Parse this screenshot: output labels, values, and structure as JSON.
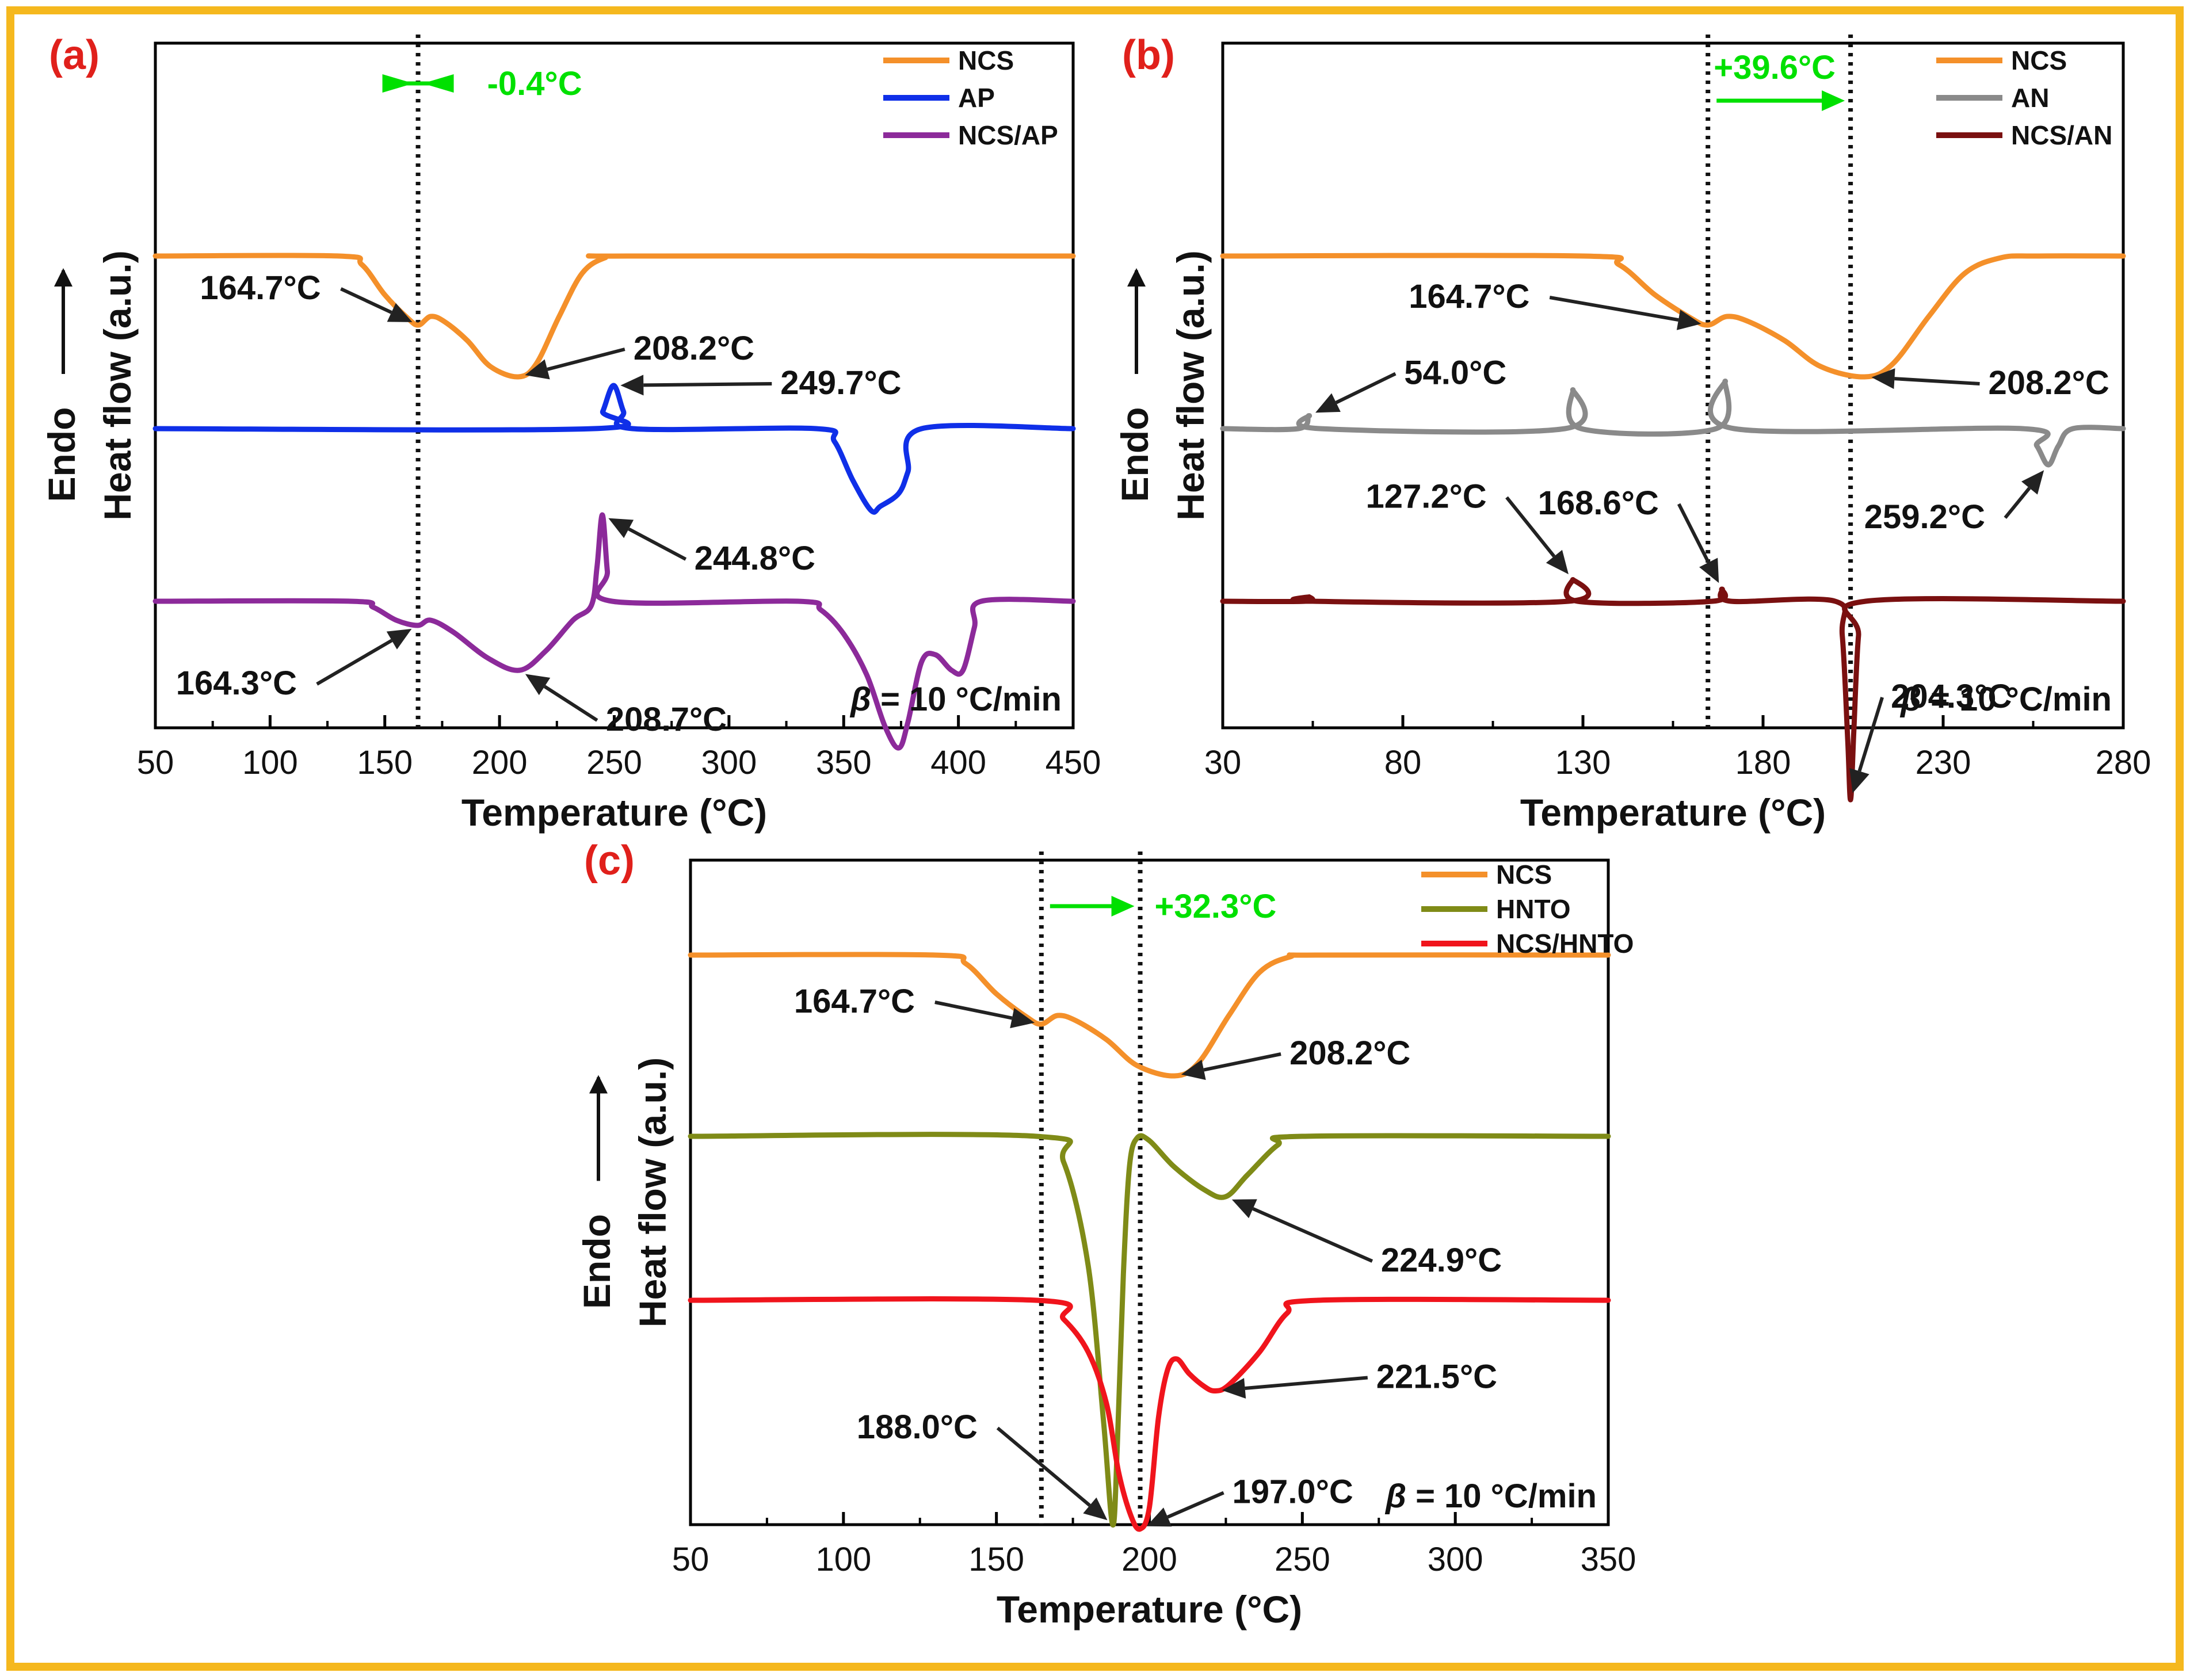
{
  "figure": {
    "border_color": "#f5b81e",
    "annotation_color": "#222222",
    "panel_label_color": "#e0201b",
    "shift_arrow_color": "#00e000",
    "axis_color": "#000000"
  },
  "chart_data": [
    {
      "panel_id": "a",
      "type": "line",
      "panel_label": "(a)",
      "xlabel": "Temperature (°C)",
      "ylabel_line1": "Endo",
      "ylabel_line2": "Heat flow (a.u.)",
      "xlim": [
        50,
        450
      ],
      "xticks": [
        50,
        100,
        150,
        200,
        250,
        300,
        350,
        400,
        450
      ],
      "yaxis_ticks": "none (arbitrary units)",
      "legend_position": "top-right",
      "rate_label": {
        "symbol": "β",
        "text": "= 10 °C/min"
      },
      "vlines": [
        164.5
      ],
      "shift": {
        "text": "-0.4°C",
        "from": 165,
        "to": 164.3,
        "direction": "converging"
      },
      "series": [
        {
          "name": "NCS",
          "color": "#f4902a",
          "offset": 4.0,
          "points": [
            [
              50,
              0
            ],
            [
              130,
              0
            ],
            [
              140,
              -0.1
            ],
            [
              150,
              -0.45
            ],
            [
              160,
              -0.72
            ],
            [
              164.7,
              -0.8
            ],
            [
              170,
              -0.7
            ],
            [
              176,
              -0.76
            ],
            [
              186,
              -0.98
            ],
            [
              196,
              -1.28
            ],
            [
              208.2,
              -1.4
            ],
            [
              216,
              -1.25
            ],
            [
              226,
              -0.7
            ],
            [
              236,
              -0.2
            ],
            [
              246,
              -0.02
            ],
            [
              256,
              0
            ],
            [
              450,
              0
            ]
          ]
        },
        {
          "name": "AP",
          "color": "#0f2fe8",
          "offset": 2.0,
          "points": [
            [
              50,
              0
            ],
            [
              241,
              0
            ],
            [
              245,
              0.2
            ],
            [
              249.7,
              0.5
            ],
            [
              254,
              0.2
            ],
            [
              258,
              0
            ],
            [
              338,
              0
            ],
            [
              346,
              -0.15
            ],
            [
              354,
              -0.6
            ],
            [
              362,
              -0.95
            ],
            [
              366,
              -0.9
            ],
            [
              374,
              -0.75
            ],
            [
              378,
              -0.5
            ],
            [
              384,
              0
            ],
            [
              450,
              0
            ]
          ]
        },
        {
          "name": "NCS/AP",
          "color": "#8c2a9a",
          "offset": 0.0,
          "points": [
            [
              50,
              0
            ],
            [
              135,
              0
            ],
            [
              145,
              -0.07
            ],
            [
              155,
              -0.22
            ],
            [
              164.3,
              -0.28
            ],
            [
              170,
              -0.22
            ],
            [
              180,
              -0.36
            ],
            [
              195,
              -0.66
            ],
            [
              208.7,
              -0.8
            ],
            [
              220,
              -0.58
            ],
            [
              232,
              -0.22
            ],
            [
              240,
              -0.05
            ],
            [
              242.5,
              0.4
            ],
            [
              244.8,
              1.0
            ],
            [
              247,
              0.35
            ],
            [
              249,
              0
            ],
            [
              330,
              0
            ],
            [
              340,
              -0.1
            ],
            [
              350,
              -0.38
            ],
            [
              360,
              -0.85
            ],
            [
              368,
              -1.45
            ],
            [
              374,
              -1.7
            ],
            [
              378,
              -1.4
            ],
            [
              384,
              -0.7
            ],
            [
              390,
              -0.62
            ],
            [
              397,
              -0.8
            ],
            [
              402,
              -0.8
            ],
            [
              407,
              -0.3
            ],
            [
              410,
              0
            ],
            [
              450,
              0
            ]
          ]
        }
      ],
      "annotations": [
        {
          "text": "164.7°C",
          "at": [
            164.7,
            -0.8
          ],
          "series": "NCS",
          "label_side": "upper-left"
        },
        {
          "text": "208.2°C",
          "at": [
            208.2,
            -1.4
          ],
          "series": "NCS",
          "label_side": "right"
        },
        {
          "text": "249.7°C",
          "at": [
            249.7,
            0.5
          ],
          "series": "AP",
          "label_side": "right"
        },
        {
          "text": "244.8°C",
          "at": [
            244.8,
            1.0
          ],
          "series": "NCS/AP",
          "label_side": "lower-right"
        },
        {
          "text": "164.3°C",
          "at": [
            164.3,
            -0.28
          ],
          "series": "NCS/AP",
          "label_side": "lower-left"
        },
        {
          "text": "208.7°C",
          "at": [
            208.7,
            -0.8
          ],
          "series": "NCS/AP",
          "label_side": "lower-right"
        }
      ]
    },
    {
      "panel_id": "b",
      "type": "line",
      "panel_label": "(b)",
      "xlabel": "Temperature (°C)",
      "ylabel_line1": "Endo",
      "ylabel_line2": "Heat flow (a.u.)",
      "xlim": [
        30,
        280
      ],
      "xticks": [
        30,
        80,
        130,
        180,
        230,
        280
      ],
      "yaxis_ticks": "none (arbitrary units)",
      "legend_position": "top-right",
      "rate_label": {
        "symbol": "β",
        "text": "= 10 °C/min"
      },
      "vlines": [
        164.7,
        204.3
      ],
      "shift": {
        "text": "+39.6°C",
        "from": 164.7,
        "to": 204.3,
        "direction": "right"
      },
      "series": [
        {
          "name": "NCS",
          "color": "#f4902a",
          "offset": 4.0,
          "points": [
            [
              30,
              0
            ],
            [
              130,
              0
            ],
            [
              140,
              -0.1
            ],
            [
              150,
              -0.45
            ],
            [
              160,
              -0.72
            ],
            [
              164.7,
              -0.8
            ],
            [
              170,
              -0.7
            ],
            [
              176,
              -0.76
            ],
            [
              186,
              -0.98
            ],
            [
              196,
              -1.28
            ],
            [
              208.2,
              -1.4
            ],
            [
              216,
              -1.25
            ],
            [
              226,
              -0.7
            ],
            [
              236,
              -0.2
            ],
            [
              246,
              -0.02
            ],
            [
              256,
              0
            ],
            [
              280,
              0
            ]
          ]
        },
        {
          "name": "AN",
          "color": "#8a8a8a",
          "offset": 2.0,
          "points": [
            [
              30,
              0
            ],
            [
              51,
              0
            ],
            [
              54,
              0.15
            ],
            [
              57,
              0
            ],
            [
              125,
              0
            ],
            [
              127.2,
              0.45
            ],
            [
              129.5,
              0
            ],
            [
              167,
              0
            ],
            [
              169.5,
              0.55
            ],
            [
              172,
              0
            ],
            [
              252,
              0
            ],
            [
              256,
              -0.2
            ],
            [
              259.2,
              -0.42
            ],
            [
              262,
              -0.2
            ],
            [
              266,
              0
            ],
            [
              280,
              0
            ]
          ]
        },
        {
          "name": "NCS/AN",
          "color": "#7a1010",
          "offset": 0.0,
          "points": [
            [
              30,
              0
            ],
            [
              53,
              0
            ],
            [
              54,
              0.05
            ],
            [
              55,
              0
            ],
            [
              126,
              0
            ],
            [
              127.2,
              0.25
            ],
            [
              128.5,
              0
            ],
            [
              166,
              0
            ],
            [
              168.6,
              0.14
            ],
            [
              171,
              0
            ],
            [
              200,
              0
            ],
            [
              202,
              -0.4
            ],
            [
              203.5,
              -1.6
            ],
            [
              204.3,
              -2.3
            ],
            [
              205.2,
              -1.5
            ],
            [
              206.5,
              -0.4
            ],
            [
              208.5,
              0
            ],
            [
              280,
              0
            ]
          ]
        }
      ],
      "annotations": [
        {
          "text": "164.7°C",
          "at": [
            164.7,
            -0.8
          ],
          "series": "NCS",
          "label_side": "upper-left"
        },
        {
          "text": "208.2°C",
          "at": [
            208.2,
            -1.4
          ],
          "series": "NCS",
          "label_side": "right"
        },
        {
          "text": "54.0°C",
          "at": [
            54.0,
            0.15
          ],
          "series": "AN",
          "label_side": "upper-right"
        },
        {
          "text": "259.2°C",
          "at": [
            259.2,
            -0.42
          ],
          "series": "AN",
          "label_side": "lower-left"
        },
        {
          "text": "127.2°C",
          "at": [
            127.2,
            0.25
          ],
          "series": "NCS/AN",
          "label_side": "upper-left"
        },
        {
          "text": "168.6°C",
          "at": [
            168.6,
            0.14
          ],
          "series": "NCS/AN",
          "label_side": "upper-left"
        },
        {
          "text": "204.3°C",
          "at": [
            204.3,
            -2.3
          ],
          "series": "NCS/AN",
          "label_side": "upper-right"
        }
      ]
    },
    {
      "panel_id": "c",
      "type": "line",
      "panel_label": "(c)",
      "xlabel": "Temperature (°C)",
      "ylabel_line1": "Endo",
      "ylabel_line2": "Heat flow (a.u.)",
      "xlim": [
        50,
        350
      ],
      "xticks": [
        50,
        100,
        150,
        200,
        250,
        300,
        350
      ],
      "yaxis_ticks": "none (arbitrary units)",
      "legend_position": "top-right",
      "rate_label": {
        "symbol": "β",
        "text": "= 10 °C/min"
      },
      "vlines": [
        164.7,
        197.0
      ],
      "shift": {
        "text": "+32.3°C",
        "from": 164.7,
        "to": 197.0,
        "direction": "right"
      },
      "series": [
        {
          "name": "NCS",
          "color": "#f4902a",
          "offset": 4.0,
          "points": [
            [
              50,
              0
            ],
            [
              130,
              0
            ],
            [
              140,
              -0.1
            ],
            [
              150,
              -0.45
            ],
            [
              160,
              -0.72
            ],
            [
              164.7,
              -0.8
            ],
            [
              170,
              -0.7
            ],
            [
              176,
              -0.76
            ],
            [
              186,
              -0.98
            ],
            [
              196,
              -1.28
            ],
            [
              208.2,
              -1.4
            ],
            [
              216,
              -1.25
            ],
            [
              226,
              -0.7
            ],
            [
              236,
              -0.2
            ],
            [
              246,
              -0.02
            ],
            [
              256,
              0
            ],
            [
              350,
              0
            ]
          ]
        },
        {
          "name": "HNTO",
          "color": "#7f8b17",
          "offset": 1.9,
          "points": [
            [
              50,
              0
            ],
            [
              163,
              0
            ],
            [
              172,
              -0.3
            ],
            [
              180,
              -1.5
            ],
            [
              185,
              -3.3
            ],
            [
              188,
              -4.5
            ],
            [
              189.5,
              -3.6
            ],
            [
              191.5,
              -1.6
            ],
            [
              193.5,
              -0.35
            ],
            [
              196,
              -0.02
            ],
            [
              200,
              -0.05
            ],
            [
              208,
              -0.35
            ],
            [
              218,
              -0.62
            ],
            [
              224.9,
              -0.7
            ],
            [
              232,
              -0.45
            ],
            [
              242,
              -0.1
            ],
            [
              250,
              0
            ],
            [
              350,
              0
            ]
          ]
        },
        {
          "name": "NCS/HNTO",
          "color": "#f0141c",
          "offset": 0.0,
          "points": [
            [
              50,
              0
            ],
            [
              163,
              0
            ],
            [
              172,
              -0.22
            ],
            [
              180,
              -0.6
            ],
            [
              186,
              -1.2
            ],
            [
              190,
              -2.0
            ],
            [
              194,
              -2.5
            ],
            [
              197,
              -2.65
            ],
            [
              200,
              -2.4
            ],
            [
              203,
              -1.35
            ],
            [
              206,
              -0.8
            ],
            [
              209,
              -0.68
            ],
            [
              213,
              -0.85
            ],
            [
              218,
              -1.0
            ],
            [
              221.5,
              -1.05
            ],
            [
              226,
              -0.98
            ],
            [
              236,
              -0.6
            ],
            [
              245,
              -0.15
            ],
            [
              255,
              0
            ],
            [
              350,
              0
            ]
          ]
        }
      ],
      "annotations": [
        {
          "text": "164.7°C",
          "at": [
            164.7,
            -0.8
          ],
          "series": "NCS",
          "label_side": "upper-left"
        },
        {
          "text": "208.2°C",
          "at": [
            208.2,
            -1.4
          ],
          "series": "NCS",
          "label_side": "right"
        },
        {
          "text": "224.9°C",
          "at": [
            224.9,
            -0.7
          ],
          "series": "HNTO",
          "label_side": "lower-right"
        },
        {
          "text": "188.0°C",
          "at": [
            188.0,
            -4.5
          ],
          "series": "HNTO",
          "label_side": "upper-left"
        },
        {
          "text": "221.5°C",
          "at": [
            221.5,
            -1.05
          ],
          "series": "NCS/HNTO",
          "label_side": "right"
        },
        {
          "text": "197.0°C",
          "at": [
            197.0,
            -2.65
          ],
          "series": "NCS/HNTO",
          "label_side": "upper-right"
        }
      ]
    }
  ]
}
